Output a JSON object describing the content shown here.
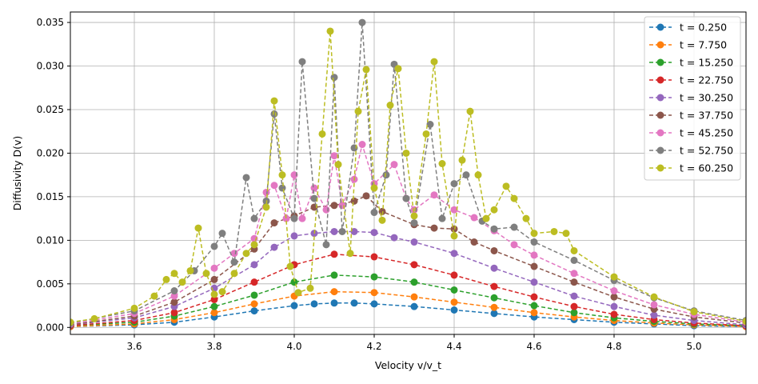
{
  "chart_data": {
    "type": "line",
    "xlabel": "Velocity v/v_t",
    "ylabel": "Diffusivity D(v)",
    "xlim": [
      3.44,
      5.13
    ],
    "ylim": [
      -0.0008,
      0.0362
    ],
    "x_ticks": [
      "3.6",
      "3.8",
      "4.0",
      "4.2",
      "4.4",
      "4.6",
      "4.8",
      "5.0"
    ],
    "y_ticks": [
      "0.000",
      "0.005",
      "0.010",
      "0.015",
      "0.020",
      "0.025",
      "0.030",
      "0.035"
    ],
    "grid": true,
    "legend_position": "top-right",
    "series": [
      {
        "name": "t = 0.250",
        "color": "#1f77b4",
        "points": [
          [
            3.44,
            0.0001
          ],
          [
            3.6,
            0.0003
          ],
          [
            3.7,
            0.0006
          ],
          [
            3.8,
            0.0012
          ],
          [
            3.9,
            0.0019
          ],
          [
            4.0,
            0.0025
          ],
          [
            4.05,
            0.0027
          ],
          [
            4.1,
            0.0028
          ],
          [
            4.15,
            0.0028
          ],
          [
            4.2,
            0.0027
          ],
          [
            4.3,
            0.0024
          ],
          [
            4.4,
            0.002
          ],
          [
            4.5,
            0.0016
          ],
          [
            4.6,
            0.0012
          ],
          [
            4.7,
            0.0009
          ],
          [
            4.8,
            0.0006
          ],
          [
            4.9,
            0.0004
          ],
          [
            5.0,
            0.0002
          ],
          [
            5.13,
            0.0001
          ]
        ]
      },
      {
        "name": "t = 7.750",
        "color": "#ff7f0e",
        "points": [
          [
            3.44,
            0.0001
          ],
          [
            3.6,
            0.0004
          ],
          [
            3.7,
            0.0009
          ],
          [
            3.8,
            0.0017
          ],
          [
            3.9,
            0.0027
          ],
          [
            4.0,
            0.0036
          ],
          [
            4.1,
            0.0041
          ],
          [
            4.2,
            0.004
          ],
          [
            4.3,
            0.0035
          ],
          [
            4.4,
            0.0029
          ],
          [
            4.5,
            0.0023
          ],
          [
            4.6,
            0.0017
          ],
          [
            4.7,
            0.0012
          ],
          [
            4.8,
            0.0008
          ],
          [
            4.9,
            0.0005
          ],
          [
            5.0,
            0.0003
          ],
          [
            5.13,
            0.0001
          ]
        ]
      },
      {
        "name": "t = 15.250",
        "color": "#2ca02c",
        "points": [
          [
            3.44,
            0.0002
          ],
          [
            3.6,
            0.0006
          ],
          [
            3.7,
            0.0013
          ],
          [
            3.8,
            0.0024
          ],
          [
            3.9,
            0.0037
          ],
          [
            4.0,
            0.0052
          ],
          [
            4.1,
            0.006
          ],
          [
            4.2,
            0.0058
          ],
          [
            4.3,
            0.0052
          ],
          [
            4.4,
            0.0043
          ],
          [
            4.5,
            0.0034
          ],
          [
            4.6,
            0.0025
          ],
          [
            4.7,
            0.0017
          ],
          [
            4.8,
            0.0011
          ],
          [
            4.9,
            0.0007
          ],
          [
            5.0,
            0.0004
          ],
          [
            5.13,
            0.0002
          ]
        ]
      },
      {
        "name": "t = 22.750",
        "color": "#d62728",
        "points": [
          [
            3.44,
            0.0002
          ],
          [
            3.6,
            0.0008
          ],
          [
            3.7,
            0.0017
          ],
          [
            3.8,
            0.0032
          ],
          [
            3.9,
            0.0052
          ],
          [
            4.0,
            0.0072
          ],
          [
            4.1,
            0.0084
          ],
          [
            4.2,
            0.0081
          ],
          [
            4.3,
            0.0072
          ],
          [
            4.4,
            0.006
          ],
          [
            4.5,
            0.0047
          ],
          [
            4.6,
            0.0035
          ],
          [
            4.7,
            0.0024
          ],
          [
            4.8,
            0.0015
          ],
          [
            4.9,
            0.0009
          ],
          [
            5.0,
            0.0005
          ],
          [
            5.13,
            0.0002
          ]
        ]
      },
      {
        "name": "t = 30.250",
        "color": "#9467bd",
        "points": [
          [
            3.44,
            0.0003
          ],
          [
            3.6,
            0.0011
          ],
          [
            3.7,
            0.0024
          ],
          [
            3.8,
            0.0045
          ],
          [
            3.9,
            0.0072
          ],
          [
            3.95,
            0.0092
          ],
          [
            4.0,
            0.0105
          ],
          [
            4.05,
            0.0108
          ],
          [
            4.1,
            0.011
          ],
          [
            4.15,
            0.011
          ],
          [
            4.2,
            0.0109
          ],
          [
            4.25,
            0.0103
          ],
          [
            4.3,
            0.0098
          ],
          [
            4.4,
            0.0085
          ],
          [
            4.5,
            0.0068
          ],
          [
            4.6,
            0.0052
          ],
          [
            4.7,
            0.0036
          ],
          [
            4.8,
            0.0024
          ],
          [
            4.9,
            0.0014
          ],
          [
            5.0,
            0.0008
          ],
          [
            5.13,
            0.0003
          ]
        ]
      },
      {
        "name": "t = 37.750",
        "color": "#8c564b",
        "points": [
          [
            3.44,
            0.0003
          ],
          [
            3.6,
            0.0013
          ],
          [
            3.7,
            0.0029
          ],
          [
            3.8,
            0.0055
          ],
          [
            3.9,
            0.009
          ],
          [
            3.95,
            0.012
          ],
          [
            4.0,
            0.0128
          ],
          [
            4.05,
            0.0138
          ],
          [
            4.1,
            0.014
          ],
          [
            4.15,
            0.0145
          ],
          [
            4.18,
            0.0151
          ],
          [
            4.22,
            0.0133
          ],
          [
            4.3,
            0.0118
          ],
          [
            4.35,
            0.0114
          ],
          [
            4.4,
            0.0113
          ],
          [
            4.45,
            0.0098
          ],
          [
            4.5,
            0.0088
          ],
          [
            4.6,
            0.007
          ],
          [
            4.7,
            0.0052
          ],
          [
            4.8,
            0.0035
          ],
          [
            4.9,
            0.0021
          ],
          [
            5.0,
            0.0012
          ],
          [
            5.13,
            0.0005
          ]
        ]
      },
      {
        "name": "t = 45.250",
        "color": "#e377c2",
        "points": [
          [
            3.44,
            0.0004
          ],
          [
            3.6,
            0.0016
          ],
          [
            3.7,
            0.0036
          ],
          [
            3.8,
            0.0068
          ],
          [
            3.85,
            0.0085
          ],
          [
            3.9,
            0.0102
          ],
          [
            3.93,
            0.0155
          ],
          [
            3.95,
            0.0163
          ],
          [
            3.98,
            0.0125
          ],
          [
            4.0,
            0.0175
          ],
          [
            4.02,
            0.0125
          ],
          [
            4.05,
            0.016
          ],
          [
            4.08,
            0.0135
          ],
          [
            4.1,
            0.0197
          ],
          [
            4.12,
            0.014
          ],
          [
            4.15,
            0.017
          ],
          [
            4.17,
            0.021
          ],
          [
            4.2,
            0.0165
          ],
          [
            4.25,
            0.0187
          ],
          [
            4.28,
            0.0148
          ],
          [
            4.3,
            0.0135
          ],
          [
            4.35,
            0.0152
          ],
          [
            4.4,
            0.0135
          ],
          [
            4.45,
            0.0126
          ],
          [
            4.5,
            0.0111
          ],
          [
            4.55,
            0.0095
          ],
          [
            4.6,
            0.0083
          ],
          [
            4.7,
            0.0062
          ],
          [
            4.8,
            0.0042
          ],
          [
            4.9,
            0.0026
          ],
          [
            5.0,
            0.0015
          ],
          [
            5.13,
            0.0006
          ]
        ]
      },
      {
        "name": "t = 52.750",
        "color": "#7f7f7f",
        "points": [
          [
            3.44,
            0.0005
          ],
          [
            3.6,
            0.0019
          ],
          [
            3.7,
            0.0042
          ],
          [
            3.75,
            0.0065
          ],
          [
            3.8,
            0.0093
          ],
          [
            3.82,
            0.0108
          ],
          [
            3.85,
            0.0075
          ],
          [
            3.88,
            0.0172
          ],
          [
            3.9,
            0.0125
          ],
          [
            3.93,
            0.0145
          ],
          [
            3.95,
            0.0245
          ],
          [
            3.97,
            0.016
          ],
          [
            4.0,
            0.0125
          ],
          [
            4.02,
            0.0305
          ],
          [
            4.05,
            0.0148
          ],
          [
            4.08,
            0.0095
          ],
          [
            4.1,
            0.0287
          ],
          [
            4.12,
            0.011
          ],
          [
            4.15,
            0.0206
          ],
          [
            4.17,
            0.035
          ],
          [
            4.2,
            0.0132
          ],
          [
            4.23,
            0.0175
          ],
          [
            4.25,
            0.0302
          ],
          [
            4.28,
            0.0148
          ],
          [
            4.3,
            0.012
          ],
          [
            4.34,
            0.0233
          ],
          [
            4.37,
            0.0125
          ],
          [
            4.4,
            0.0165
          ],
          [
            4.43,
            0.0175
          ],
          [
            4.47,
            0.0122
          ],
          [
            4.5,
            0.0113
          ],
          [
            4.55,
            0.0115
          ],
          [
            4.6,
            0.0098
          ],
          [
            4.7,
            0.0077
          ],
          [
            4.8,
            0.0054
          ],
          [
            4.9,
            0.0034
          ],
          [
            5.0,
            0.0019
          ],
          [
            5.13,
            0.0008
          ]
        ]
      },
      {
        "name": "t = 60.250",
        "color": "#bcbd22",
        "points": [
          [
            3.44,
            0.0006
          ],
          [
            3.5,
            0.001
          ],
          [
            3.6,
            0.0022
          ],
          [
            3.65,
            0.0036
          ],
          [
            3.68,
            0.0055
          ],
          [
            3.7,
            0.0062
          ],
          [
            3.72,
            0.0052
          ],
          [
            3.74,
            0.0065
          ],
          [
            3.76,
            0.0114
          ],
          [
            3.78,
            0.0062
          ],
          [
            3.8,
            0.0038
          ],
          [
            3.82,
            0.0041
          ],
          [
            3.85,
            0.0062
          ],
          [
            3.88,
            0.0085
          ],
          [
            3.9,
            0.0095
          ],
          [
            3.93,
            0.0138
          ],
          [
            3.95,
            0.026
          ],
          [
            3.97,
            0.0175
          ],
          [
            3.99,
            0.007
          ],
          [
            4.01,
            0.004
          ],
          [
            4.04,
            0.0045
          ],
          [
            4.07,
            0.0222
          ],
          [
            4.09,
            0.034
          ],
          [
            4.11,
            0.0187
          ],
          [
            4.14,
            0.0085
          ],
          [
            4.16,
            0.0248
          ],
          [
            4.18,
            0.0296
          ],
          [
            4.2,
            0.016
          ],
          [
            4.22,
            0.0123
          ],
          [
            4.24,
            0.0255
          ],
          [
            4.26,
            0.0297
          ],
          [
            4.28,
            0.02
          ],
          [
            4.3,
            0.0128
          ],
          [
            4.33,
            0.0222
          ],
          [
            4.35,
            0.0305
          ],
          [
            4.37,
            0.0188
          ],
          [
            4.4,
            0.0105
          ],
          [
            4.42,
            0.0192
          ],
          [
            4.44,
            0.0248
          ],
          [
            4.46,
            0.0175
          ],
          [
            4.48,
            0.0125
          ],
          [
            4.5,
            0.0135
          ],
          [
            4.53,
            0.0162
          ],
          [
            4.55,
            0.0148
          ],
          [
            4.58,
            0.0125
          ],
          [
            4.6,
            0.0108
          ],
          [
            4.65,
            0.011
          ],
          [
            4.68,
            0.0108
          ],
          [
            4.7,
            0.0088
          ],
          [
            4.8,
            0.0058
          ],
          [
            4.9,
            0.0035
          ],
          [
            5.0,
            0.0018
          ],
          [
            5.13,
            0.0007
          ]
        ]
      }
    ]
  }
}
